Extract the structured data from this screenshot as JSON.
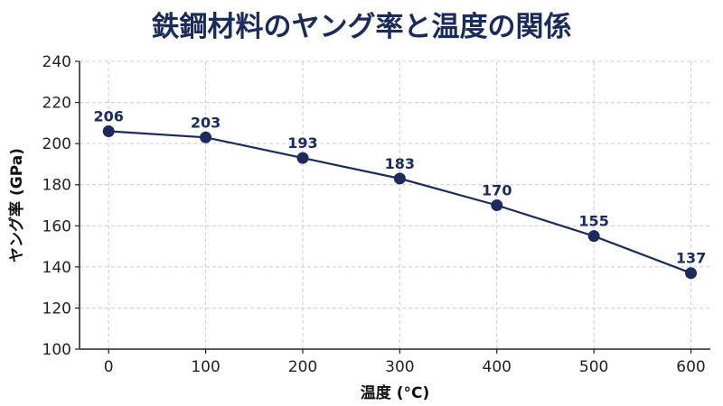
{
  "chart_data": {
    "type": "line",
    "title": "鉄鋼材料のヤング率と温度の関係",
    "xlabel": "温度 (°C)",
    "ylabel": "ヤング率 (GPa)",
    "x": [
      0,
      100,
      200,
      300,
      400,
      500,
      600
    ],
    "series": [
      {
        "values": [
          206,
          203,
          193,
          183,
          170,
          155,
          137
        ]
      }
    ],
    "data_labels": [
      "206",
      "203",
      "193",
      "183",
      "170",
      "155",
      "137"
    ],
    "xticks": [
      0,
      100,
      200,
      300,
      400,
      500,
      600
    ],
    "xtick_labels": [
      "0",
      "100",
      "200",
      "300",
      "400",
      "500",
      "600"
    ],
    "yticks": [
      100,
      120,
      140,
      160,
      180,
      200,
      220,
      240
    ],
    "ytick_labels": [
      "100",
      "120",
      "140",
      "160",
      "180",
      "200",
      "220",
      "240"
    ],
    "xlim": [
      -30,
      620
    ],
    "ylim": [
      100,
      240
    ],
    "grid": true,
    "colors": {
      "line": "#1a2b5c",
      "marker": "#1a2b5c",
      "grid": "#cccccc",
      "title": "#1a2b5c"
    }
  }
}
